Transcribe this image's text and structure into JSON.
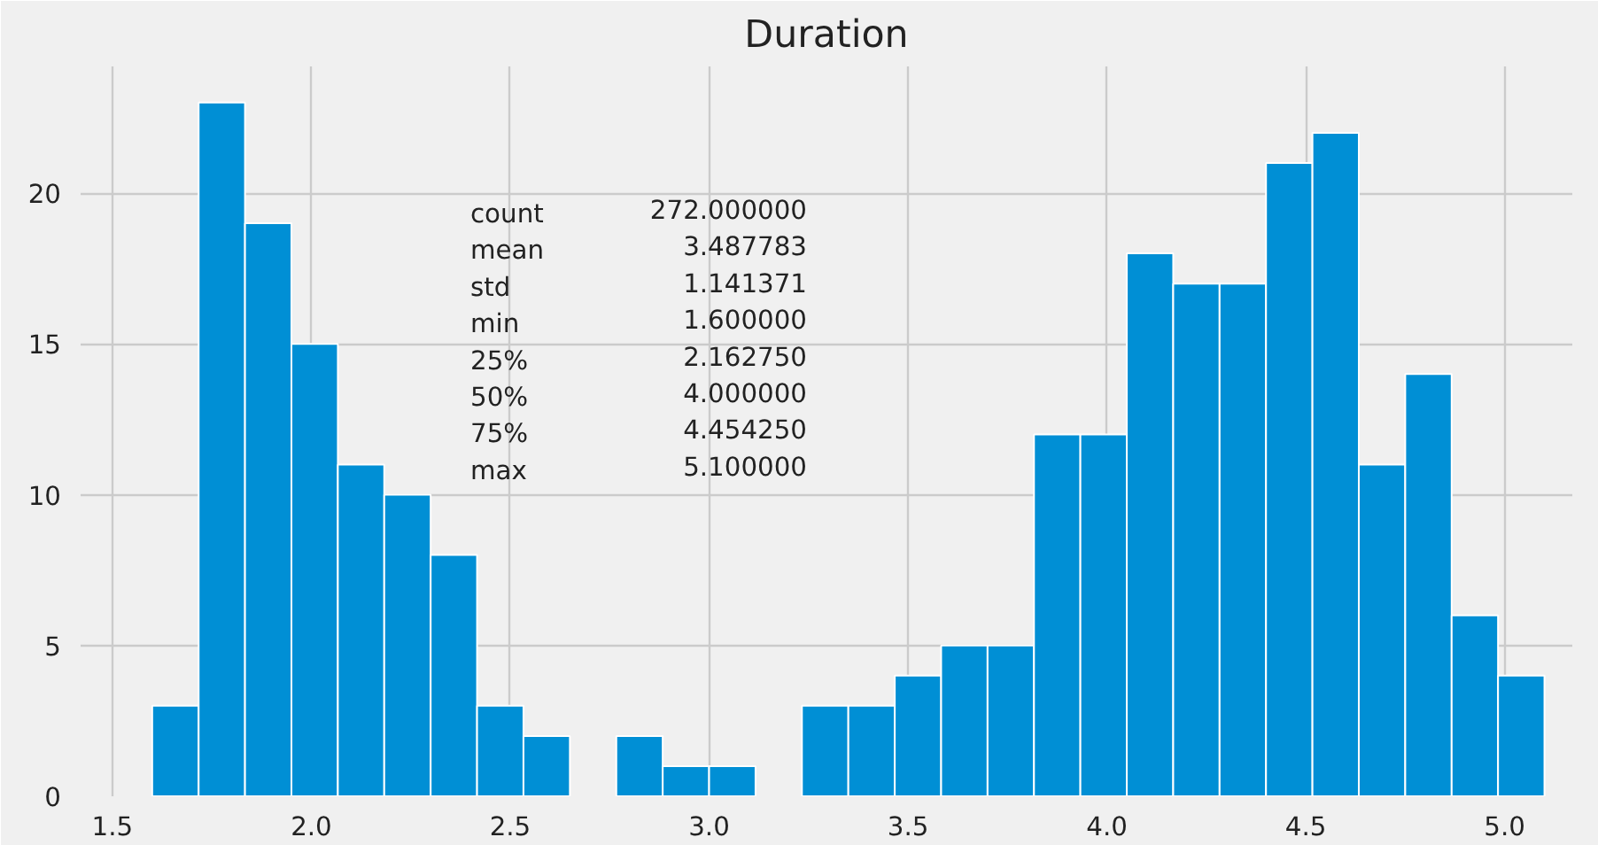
{
  "chart_data": {
    "type": "histogram",
    "title": "Duration",
    "color": "#008fd5",
    "bins": [
      1.6,
      1.7167,
      1.8333,
      1.95,
      2.0667,
      2.1833,
      2.3,
      2.4167,
      2.5333,
      2.65,
      2.7667,
      2.8833,
      3.0,
      3.1167,
      3.2333,
      3.35,
      3.4667,
      3.5833,
      3.7,
      3.8167,
      3.9333,
      4.05,
      4.1667,
      4.2833,
      4.4,
      4.5167,
      4.6333,
      4.75,
      4.8667,
      4.9833,
      5.1
    ],
    "values": [
      3,
      23,
      19,
      15,
      11,
      10,
      8,
      3,
      2,
      0,
      2,
      1,
      1,
      0,
      3,
      3,
      4,
      5,
      5,
      12,
      12,
      18,
      17,
      17,
      21,
      22,
      11,
      14,
      6,
      4
    ],
    "xlim": [
      1.42,
      5.17
    ],
    "ylim": [
      0,
      24.2
    ],
    "xticks": [
      1.5,
      {
        "value": 2,
        "label": "2.0"
      },
      2.5,
      {
        "value": 3,
        "label": "3.0"
      },
      3.5,
      {
        "value": 4,
        "label": "4.0"
      },
      4.5,
      {
        "value": 5,
        "label": "5.0"
      }
    ],
    "yticks": [
      0,
      5,
      10,
      15,
      20
    ],
    "grid": true,
    "annotations": [
      "count    272.000000\nmean       3.487783\nstd        1.141371\nmin        1.600000\n25%        2.162750\n50%        4.000000\n75%        4.454250\nmax        5.100000"
    ]
  }
}
